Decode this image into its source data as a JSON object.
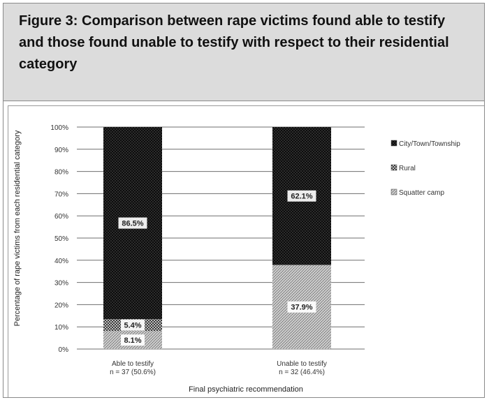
{
  "figure": {
    "title": "Figure 3: Comparison between rape victims found able to testify and those found unable to testify with respect to their residential category"
  },
  "chart_data": {
    "type": "bar",
    "stacked": true,
    "categories": [
      "Able to testify n = 37 (50.6%)",
      "Unable to testify n = 32 (46.4%)"
    ],
    "category_lines": [
      [
        "Able to testify",
        "n = 37 (50.6%)"
      ],
      [
        "Unable to testify",
        "n = 32 (46.4%)"
      ]
    ],
    "series": [
      {
        "name": "Squatter camp",
        "values": [
          8.1,
          37.9
        ],
        "labels": [
          "8.1%",
          "37.9%"
        ],
        "color": "#9a9a9a"
      },
      {
        "name": "Rural",
        "values": [
          5.4,
          0
        ],
        "labels": [
          "5.4%",
          ""
        ],
        "color": "#555555"
      },
      {
        "name": "City/Town/Township",
        "values": [
          86.5,
          62.1
        ],
        "labels": [
          "86.5%",
          "62.1%"
        ],
        "color": "#1e1e1e"
      }
    ],
    "legend_order": [
      "City/Town/Township",
      "Rural",
      "Squatter camp"
    ],
    "legend_placement": "right",
    "yticks": [
      "0%",
      "10%",
      "20%",
      "30%",
      "40%",
      "50%",
      "60%",
      "70%",
      "80%",
      "90%",
      "100%"
    ],
    "ylim": [
      0,
      100
    ],
    "ylabel": "Percentage of rape victims from each residential category",
    "xlabel": "Final psychiatric recommendation",
    "grid": true
  }
}
